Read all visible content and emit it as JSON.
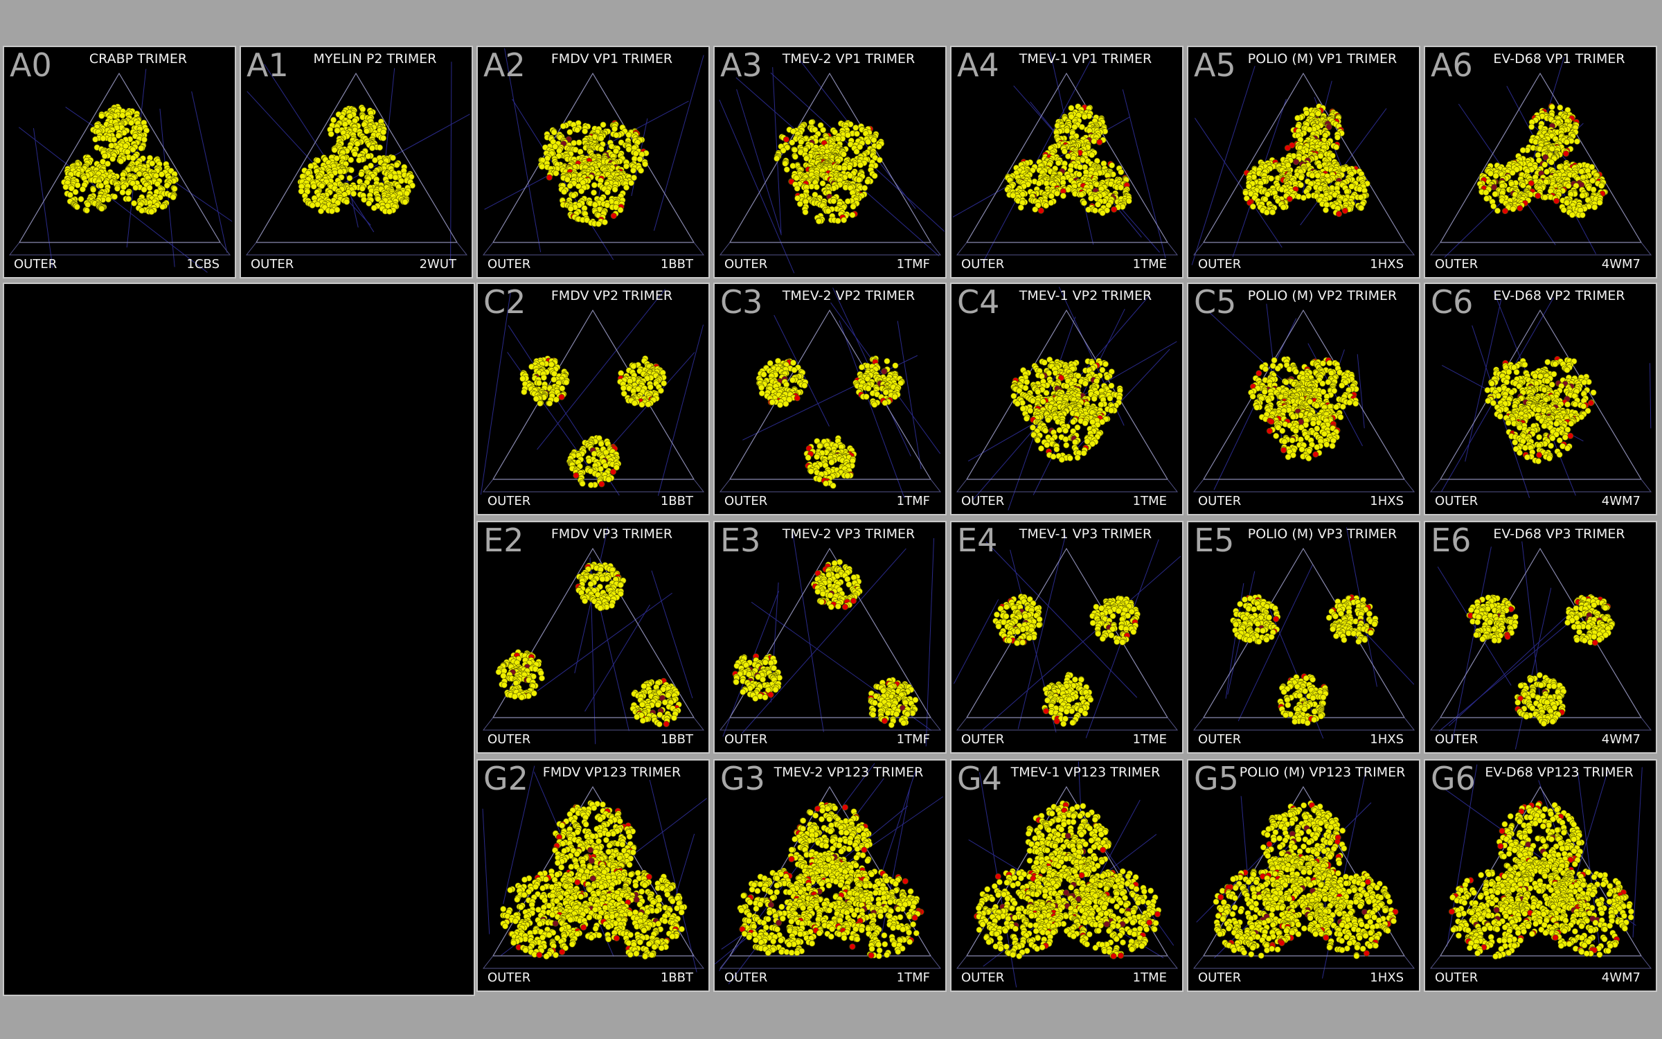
{
  "colors": {
    "background": "#a3a3a3",
    "panel": "#000000",
    "atom_yellow": "#f0f000",
    "atom_red": "#e00000",
    "atom_darkred": "#7a1020",
    "grid_line": "#2a2a8a"
  },
  "panels": [
    {
      "id": "A0",
      "title": "CRABP TRIMER",
      "outer": "OUTER",
      "pdb": "1CBS",
      "style": "lobes"
    },
    {
      "id": "A1",
      "title": "MYELIN P2 TRIMER",
      "outer": "OUTER",
      "pdb": "2WUT",
      "style": "lobes"
    },
    {
      "id": "A2",
      "title": "FMDV VP1 TRIMER",
      "outer": "OUTER",
      "pdb": "1BBT",
      "style": "compact"
    },
    {
      "id": "A3",
      "title": "TMEV-2 VP1 TRIMER",
      "outer": "OUTER",
      "pdb": "1TMF",
      "style": "compact"
    },
    {
      "id": "A4",
      "title": "TMEV-1 VP1 TRIMER",
      "outer": "OUTER",
      "pdb": "1TME",
      "style": "tri"
    },
    {
      "id": "A5",
      "title": "POLIO (M) VP1 TRIMER",
      "outer": "OUTER",
      "pdb": "1HXS",
      "style": "tri"
    },
    {
      "id": "A6",
      "title": "EV-D68 VP1 TRIMER",
      "outer": "OUTER",
      "pdb": "4WM7",
      "style": "tri"
    },
    {
      "id": "C2",
      "title": "FMDV VP2 TRIMER",
      "outer": "OUTER",
      "pdb": "1BBT",
      "style": "separated"
    },
    {
      "id": "C3",
      "title": "TMEV-2 VP2 TRIMER",
      "outer": "OUTER",
      "pdb": "1TMF",
      "style": "separated"
    },
    {
      "id": "C4",
      "title": "TMEV-1 VP2 TRIMER",
      "outer": "OUTER",
      "pdb": "1TME",
      "style": "compact"
    },
    {
      "id": "C5",
      "title": "POLIO (M) VP2 TRIMER",
      "outer": "OUTER",
      "pdb": "1HXS",
      "style": "compact"
    },
    {
      "id": "C6",
      "title": "EV-D68 VP2 TRIMER",
      "outer": "OUTER",
      "pdb": "4WM7",
      "style": "compact"
    },
    {
      "id": "E2",
      "title": "FMDV VP3 TRIMER",
      "outer": "OUTER",
      "pdb": "1BBT",
      "style": "wide"
    },
    {
      "id": "E3",
      "title": "TMEV-2 VP3 TRIMER",
      "outer": "OUTER",
      "pdb": "1TMF",
      "style": "wide"
    },
    {
      "id": "E4",
      "title": "TMEV-1 VP3 TRIMER",
      "outer": "OUTER",
      "pdb": "1TME",
      "style": "separated"
    },
    {
      "id": "E5",
      "title": "POLIO (M) VP3 TRIMER",
      "outer": "OUTER",
      "pdb": "1HXS",
      "style": "separated"
    },
    {
      "id": "E6",
      "title": "EV-D68 VP3 TRIMER",
      "outer": "OUTER",
      "pdb": "4WM7",
      "style": "separated"
    },
    {
      "id": "G2",
      "title": "FMDV VP123 TRIMER",
      "outer": "OUTER",
      "pdb": "1BBT",
      "style": "big"
    },
    {
      "id": "G3",
      "title": "TMEV-2 VP123 TRIMER",
      "outer": "OUTER",
      "pdb": "1TMF",
      "style": "big"
    },
    {
      "id": "G4",
      "title": "TMEV-1 VP123 TRIMER",
      "outer": "OUTER",
      "pdb": "1TME",
      "style": "big"
    },
    {
      "id": "G5",
      "title": "POLIO (M) VP123 TRIMER",
      "outer": "OUTER",
      "pdb": "1HXS",
      "style": "big"
    },
    {
      "id": "G6",
      "title": "EV-D68 VP123 TRIMER",
      "outer": "OUTER",
      "pdb": "4WM7",
      "style": "big"
    }
  ]
}
